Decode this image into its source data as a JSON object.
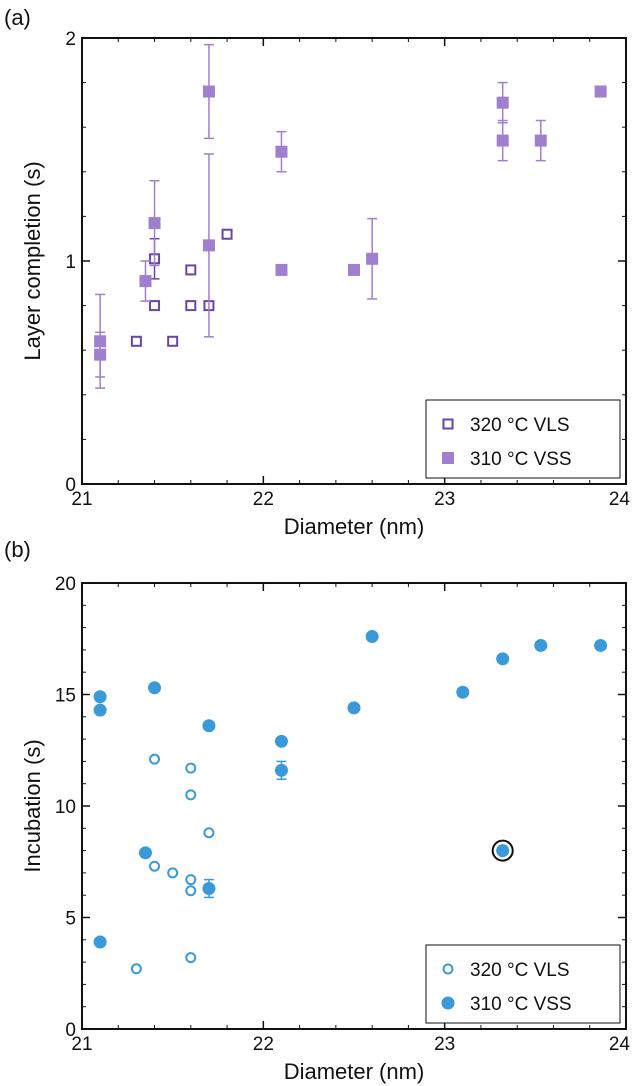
{
  "chart_data": [
    {
      "type": "scatter",
      "panel": "(a)",
      "xlabel": "Diameter (nm)",
      "ylabel": "Layer completion (s)",
      "xlim": [
        21,
        24
      ],
      "ylim": [
        0,
        2
      ],
      "xticks": [
        "21",
        "22",
        "23",
        "24"
      ],
      "yticks": [
        "0",
        "1",
        "2"
      ],
      "legend_position": "bottom-right",
      "grid": false,
      "series": [
        {
          "name": "320 °C VLS",
          "marker": "open-square",
          "color": "#6a45a8",
          "points": [
            {
              "x": 21.3,
              "y": 0.64
            },
            {
              "x": 21.4,
              "y": 0.8
            },
            {
              "x": 21.4,
              "y": 1.01,
              "err": 0.09
            },
            {
              "x": 21.5,
              "y": 0.64
            },
            {
              "x": 21.6,
              "y": 0.8
            },
            {
              "x": 21.6,
              "y": 0.96
            },
            {
              "x": 21.7,
              "y": 0.8
            },
            {
              "x": 21.8,
              "y": 1.12
            }
          ]
        },
        {
          "name": "310 °C VSS",
          "marker": "filled-square",
          "color": "#a07fcf",
          "points": [
            {
              "x": 21.1,
              "y": 0.64,
              "err": 0.21
            },
            {
              "x": 21.1,
              "y": 0.58,
              "err": 0.1
            },
            {
              "x": 21.35,
              "y": 0.91,
              "err": 0.09
            },
            {
              "x": 21.4,
              "y": 1.17,
              "err": 0.19
            },
            {
              "x": 21.7,
              "y": 1.76,
              "err": 0.21
            },
            {
              "x": 21.7,
              "y": 1.07,
              "err": 0.41
            },
            {
              "x": 22.1,
              "y": 1.49,
              "err": 0.09
            },
            {
              "x": 22.1,
              "y": 0.96
            },
            {
              "x": 22.5,
              "y": 0.96
            },
            {
              "x": 22.6,
              "y": 1.01,
              "err": 0.18
            },
            {
              "x": 23.32,
              "y": 1.71,
              "err": 0.09
            },
            {
              "x": 23.32,
              "y": 1.54,
              "err": 0.09
            },
            {
              "x": 23.53,
              "y": 1.54,
              "err": 0.09
            },
            {
              "x": 23.86,
              "y": 1.76
            }
          ]
        }
      ]
    },
    {
      "type": "scatter",
      "panel": "(b)",
      "xlabel": "Diameter (nm)",
      "ylabel": "Incubation (s)",
      "xlim": [
        21,
        24
      ],
      "ylim": [
        0,
        20
      ],
      "xticks": [
        "21",
        "22",
        "23",
        "24"
      ],
      "yticks": [
        "0",
        "5",
        "10",
        "15",
        "20"
      ],
      "legend_position": "bottom-right",
      "grid": false,
      "series": [
        {
          "name": "320 °C VLS",
          "marker": "open-circle",
          "color": "#3a9ad9",
          "points": [
            {
              "x": 21.3,
              "y": 2.7
            },
            {
              "x": 21.4,
              "y": 12.1
            },
            {
              "x": 21.4,
              "y": 7.3
            },
            {
              "x": 21.5,
              "y": 7.0
            },
            {
              "x": 21.6,
              "y": 11.7
            },
            {
              "x": 21.6,
              "y": 10.5
            },
            {
              "x": 21.6,
              "y": 6.7
            },
            {
              "x": 21.6,
              "y": 6.2
            },
            {
              "x": 21.6,
              "y": 3.2
            },
            {
              "x": 21.7,
              "y": 8.8
            }
          ]
        },
        {
          "name": "310 °C VSS",
          "marker": "filled-circle",
          "color": "#3a9ad9",
          "points": [
            {
              "x": 21.1,
              "y": 14.9
            },
            {
              "x": 21.1,
              "y": 14.3
            },
            {
              "x": 21.1,
              "y": 3.9
            },
            {
              "x": 21.35,
              "y": 7.9
            },
            {
              "x": 21.4,
              "y": 15.3
            },
            {
              "x": 21.7,
              "y": 13.6
            },
            {
              "x": 21.7,
              "y": 6.3,
              "err": 0.4
            },
            {
              "x": 22.1,
              "y": 12.9
            },
            {
              "x": 22.1,
              "y": 11.6,
              "err": 0.4
            },
            {
              "x": 22.5,
              "y": 14.4
            },
            {
              "x": 22.6,
              "y": 17.6
            },
            {
              "x": 23.1,
              "y": 15.1
            },
            {
              "x": 23.32,
              "y": 16.6
            },
            {
              "x": 23.32,
              "y": 8.0,
              "highlight": true
            },
            {
              "x": 23.53,
              "y": 17.2
            },
            {
              "x": 23.86,
              "y": 17.2
            }
          ]
        }
      ]
    }
  ]
}
